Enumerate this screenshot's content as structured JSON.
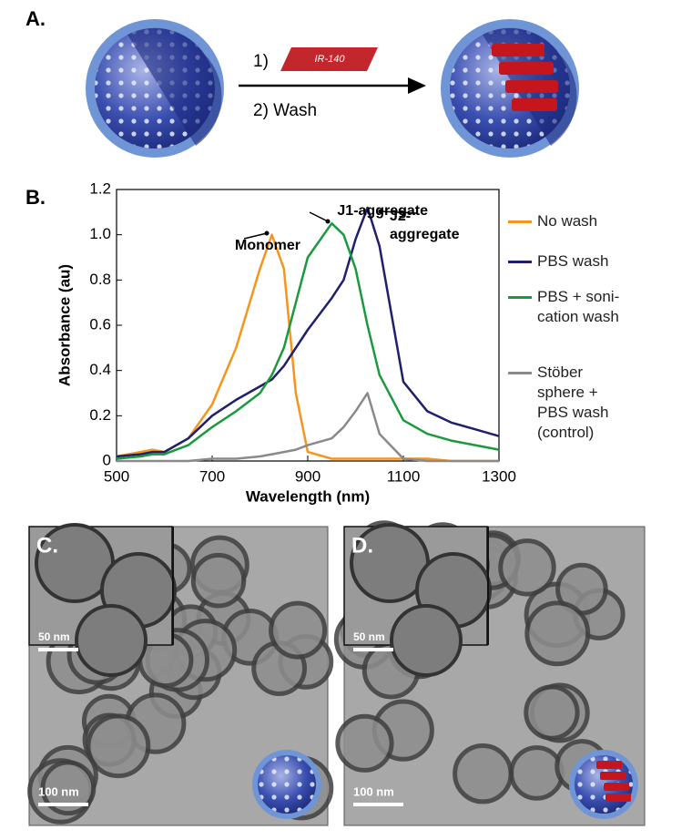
{
  "panel_a": {
    "label": "A.",
    "step1": "1)",
    "dye": "IR-140",
    "step2": "2) Wash"
  },
  "panel_b_label": "B.",
  "panel_c": {
    "label": "C.",
    "inset_scale": "50 nm",
    "scale": "100 nm"
  },
  "panel_d": {
    "label": "D.",
    "inset_scale": "50 nm",
    "scale": "100 nm"
  },
  "chart_data": {
    "type": "line",
    "xlabel": "Wavelength (nm)",
    "ylabel": "Absorbance (au)",
    "x": [
      500,
      550,
      575,
      600,
      650,
      700,
      750,
      800,
      825,
      850,
      875,
      900,
      950,
      975,
      1000,
      1025,
      1050,
      1100,
      1150,
      1200,
      1250,
      1300
    ],
    "series": [
      {
        "name": "No wash",
        "color": "#f7941d",
        "values": [
          0.02,
          0.04,
          0.05,
          0.04,
          0.1,
          0.25,
          0.5,
          0.85,
          1.0,
          0.85,
          0.3,
          0.04,
          0.01,
          0.01,
          0.01,
          0.01,
          0.01,
          0.01,
          0.01,
          0,
          0,
          0
        ]
      },
      {
        "name": "PBS wash",
        "color": "#1f1f6e",
        "values": [
          0.02,
          0.03,
          0.04,
          0.04,
          0.1,
          0.2,
          0.27,
          0.33,
          0.36,
          0.42,
          0.5,
          0.58,
          0.72,
          0.8,
          0.98,
          1.12,
          0.95,
          0.35,
          0.22,
          0.17,
          0.14,
          0.11
        ]
      },
      {
        "name": "PBS + soni-\ncation wash",
        "color": "#1a9a3c",
        "values": [
          0.01,
          0.02,
          0.03,
          0.03,
          0.07,
          0.15,
          0.22,
          0.3,
          0.38,
          0.5,
          0.7,
          0.9,
          1.05,
          1.0,
          0.85,
          0.6,
          0.38,
          0.18,
          0.12,
          0.09,
          0.07,
          0.05
        ]
      },
      {
        "name": "Stöber\nsphere +\nPBS wash\n   (control)",
        "color": "#8a8a8a",
        "values": [
          0,
          0,
          0,
          0,
          0,
          0.01,
          0.01,
          0.02,
          0.03,
          0.04,
          0.05,
          0.07,
          0.1,
          0.15,
          0.22,
          0.3,
          0.12,
          0.01,
          0,
          0,
          0,
          0
        ]
      }
    ],
    "annotations": [
      "Monomer",
      "J1-aggregate",
      "J2-",
      "aggregate"
    ],
    "xlim": [
      500,
      1300
    ],
    "xticks": [
      500,
      700,
      900,
      1100,
      1300
    ],
    "ylim": [
      0,
      1.2
    ],
    "yticks": [
      0,
      0.2,
      0.4,
      0.6,
      0.8,
      {
        "value": 1,
        "label": "1.0"
      },
      1.2
    ]
  }
}
